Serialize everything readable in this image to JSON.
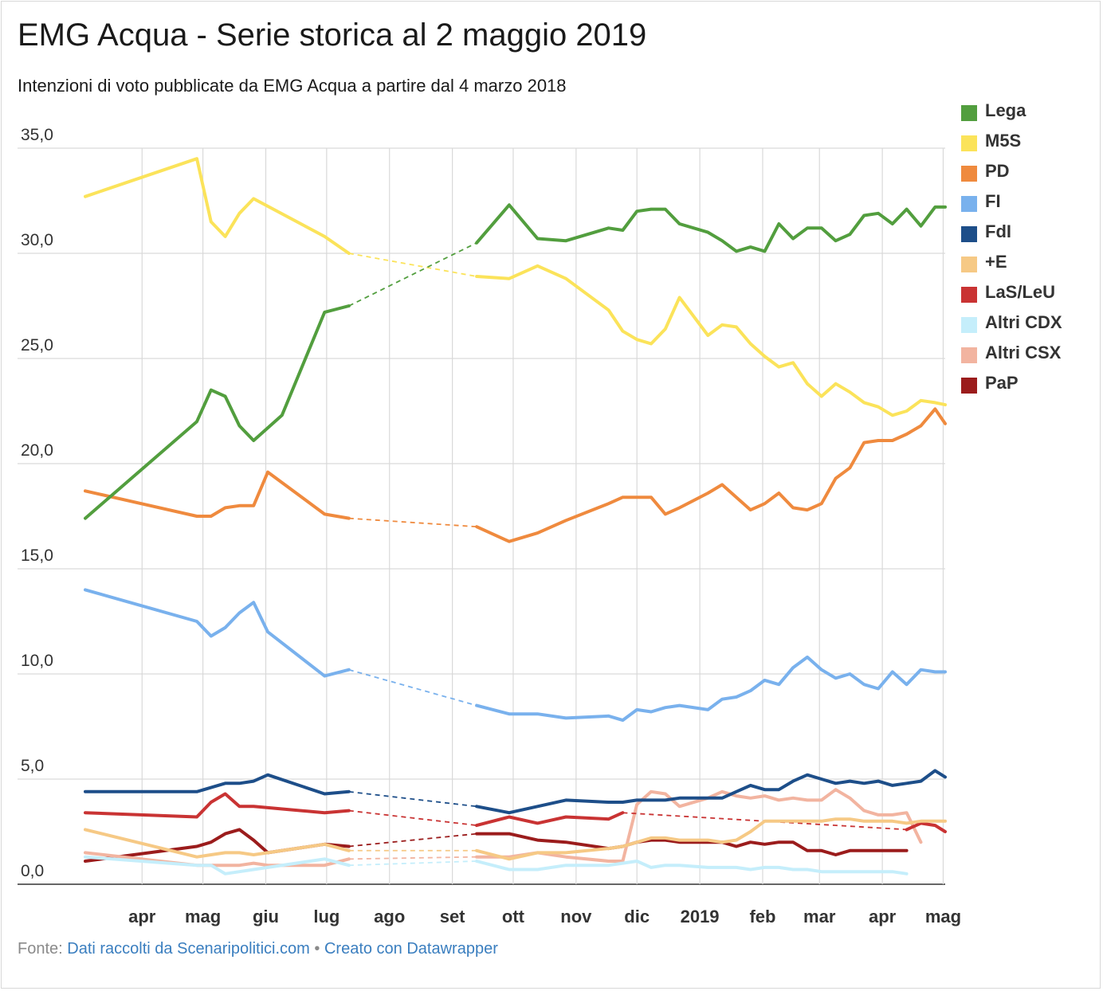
{
  "header": {
    "title": "EMG Acqua - Serie storica al 2 maggio 2019",
    "subtitle": "Intenzioni di voto pubblicate da EMG Acqua a partire dal 4 marzo 2018"
  },
  "footer": {
    "source_prefix": "Fonte:",
    "source_link": "Dati raccolti da Scenaripolitici.com",
    "separator": "•",
    "made_with": "Creato con Datawrapper"
  },
  "chart_data": {
    "type": "line",
    "title": "EMG Acqua - Serie storica al 2 maggio 2019",
    "subtitle": "Intenzioni di voto pubblicate da EMG Acqua a partire dal 4 marzo 2018",
    "xlabel": "",
    "ylabel": "",
    "x_range": [
      "2018-03-04",
      "2019-05-02"
    ],
    "ylim": [
      0,
      35
    ],
    "y_ticks": [
      "0,0",
      "5,0",
      "10,0",
      "15,0",
      "20,0",
      "25,0",
      "30,0",
      "35,0"
    ],
    "x_ticks": [
      {
        "label": "apr",
        "date": "2018-04-01"
      },
      {
        "label": "mag",
        "date": "2018-05-01"
      },
      {
        "label": "giu",
        "date": "2018-06-01"
      },
      {
        "label": "lug",
        "date": "2018-07-01"
      },
      {
        "label": "ago",
        "date": "2018-08-01"
      },
      {
        "label": "set",
        "date": "2018-09-01"
      },
      {
        "label": "ott",
        "date": "2018-10-01"
      },
      {
        "label": "nov",
        "date": "2018-11-01"
      },
      {
        "label": "dic",
        "date": "2018-12-01"
      },
      {
        "label": "2019",
        "date": "2019-01-01"
      },
      {
        "label": "feb",
        "date": "2019-02-01"
      },
      {
        "label": "mar",
        "date": "2019-03-01"
      },
      {
        "label": "apr",
        "date": "2019-04-01"
      },
      {
        "label": "mag",
        "date": "2019-05-01"
      }
    ],
    "grid": true,
    "legend_position": "right",
    "gap": [
      "2018-07-12",
      "2018-09-13"
    ],
    "series": [
      {
        "name": "Lega",
        "color": "#529e3e",
        "width": 4,
        "x": [
          "2018-03-04",
          "2018-04-28",
          "2018-05-05",
          "2018-05-12",
          "2018-05-19",
          "2018-05-26",
          "2018-06-09",
          "2018-06-30",
          "2018-07-12",
          "2018-09-13",
          "2018-09-29",
          "2018-10-13",
          "2018-10-27",
          "2018-11-17",
          "2018-11-24",
          "2018-12-01",
          "2018-12-08",
          "2018-12-15",
          "2018-12-22",
          "2019-01-05",
          "2019-01-12",
          "2019-01-19",
          "2019-01-26",
          "2019-02-02",
          "2019-02-09",
          "2019-02-16",
          "2019-02-23",
          "2019-03-02",
          "2019-03-09",
          "2019-03-16",
          "2019-03-23",
          "2019-03-30",
          "2019-04-06",
          "2019-04-13",
          "2019-04-20",
          "2019-04-27",
          "2019-05-02"
        ],
        "values": [
          17.4,
          22.0,
          23.5,
          23.2,
          21.8,
          21.1,
          22.3,
          27.2,
          27.5,
          30.5,
          32.3,
          30.7,
          30.6,
          31.2,
          31.1,
          32.0,
          32.1,
          32.1,
          31.4,
          31.0,
          30.6,
          30.1,
          30.3,
          30.1,
          31.4,
          30.7,
          31.2,
          31.2,
          30.6,
          30.9,
          31.8,
          31.9,
          31.4,
          32.1,
          31.3,
          32.2,
          32.2
        ]
      },
      {
        "name": "M5S",
        "color": "#fbe35a",
        "width": 4,
        "x": [
          "2018-03-04",
          "2018-04-28",
          "2018-05-05",
          "2018-05-12",
          "2018-05-19",
          "2018-05-26",
          "2018-06-30",
          "2018-07-12",
          "2018-09-13",
          "2018-09-29",
          "2018-10-13",
          "2018-10-27",
          "2018-11-17",
          "2018-11-24",
          "2018-12-01",
          "2018-12-08",
          "2018-12-15",
          "2018-12-22",
          "2019-01-05",
          "2019-01-12",
          "2019-01-19",
          "2019-01-26",
          "2019-02-02",
          "2019-02-09",
          "2019-02-16",
          "2019-02-23",
          "2019-03-02",
          "2019-03-09",
          "2019-03-16",
          "2019-03-23",
          "2019-03-30",
          "2019-04-06",
          "2019-04-13",
          "2019-04-20",
          "2019-04-27",
          "2019-05-02"
        ],
        "values": [
          32.7,
          34.5,
          31.5,
          30.8,
          31.9,
          32.6,
          30.8,
          30.0,
          28.9,
          28.8,
          29.4,
          28.8,
          27.3,
          26.3,
          25.9,
          25.7,
          26.4,
          27.9,
          26.1,
          26.6,
          26.5,
          25.7,
          25.1,
          24.6,
          24.8,
          23.8,
          23.2,
          23.8,
          23.4,
          22.9,
          22.7,
          22.3,
          22.5,
          23.0,
          22.9,
          22.8
        ]
      },
      {
        "name": "PD",
        "color": "#ef8a3e",
        "width": 4,
        "x": [
          "2018-03-04",
          "2018-04-28",
          "2018-05-05",
          "2018-05-12",
          "2018-05-19",
          "2018-05-26",
          "2018-06-02",
          "2018-06-30",
          "2018-07-12",
          "2018-09-13",
          "2018-09-29",
          "2018-10-13",
          "2018-10-27",
          "2018-11-17",
          "2018-11-24",
          "2018-12-01",
          "2018-12-08",
          "2018-12-15",
          "2018-12-22",
          "2019-01-05",
          "2019-01-12",
          "2019-01-19",
          "2019-01-26",
          "2019-02-02",
          "2019-02-09",
          "2019-02-16",
          "2019-02-23",
          "2019-03-02",
          "2019-03-09",
          "2019-03-16",
          "2019-03-23",
          "2019-03-30",
          "2019-04-06",
          "2019-04-13",
          "2019-04-20",
          "2019-04-27",
          "2019-05-02"
        ],
        "values": [
          18.7,
          17.5,
          17.5,
          17.9,
          18.0,
          18.0,
          19.6,
          17.6,
          17.4,
          17.0,
          16.3,
          16.7,
          17.3,
          18.1,
          18.4,
          18.4,
          18.4,
          17.6,
          17.9,
          18.6,
          19.0,
          18.4,
          17.8,
          18.1,
          18.6,
          17.9,
          17.8,
          18.1,
          19.3,
          19.8,
          21.0,
          21.1,
          21.1,
          21.4,
          21.8,
          22.6,
          21.9
        ]
      },
      {
        "name": "FI",
        "color": "#79b1ed",
        "width": 4,
        "x": [
          "2018-03-04",
          "2018-04-28",
          "2018-05-05",
          "2018-05-12",
          "2018-05-19",
          "2018-05-26",
          "2018-06-02",
          "2018-06-30",
          "2018-07-12",
          "2018-09-13",
          "2018-09-29",
          "2018-10-13",
          "2018-10-27",
          "2018-11-17",
          "2018-11-24",
          "2018-12-01",
          "2018-12-08",
          "2018-12-15",
          "2018-12-22",
          "2019-01-05",
          "2019-01-12",
          "2019-01-19",
          "2019-01-26",
          "2019-02-02",
          "2019-02-09",
          "2019-02-16",
          "2019-02-23",
          "2019-03-02",
          "2019-03-09",
          "2019-03-16",
          "2019-03-23",
          "2019-03-30",
          "2019-04-06",
          "2019-04-13",
          "2019-04-20",
          "2019-04-27",
          "2019-05-02"
        ],
        "values": [
          14.0,
          12.5,
          11.8,
          12.2,
          12.9,
          13.4,
          12.0,
          9.9,
          10.2,
          8.5,
          8.1,
          8.1,
          7.9,
          8.0,
          7.8,
          8.3,
          8.2,
          8.4,
          8.5,
          8.3,
          8.8,
          8.9,
          9.2,
          9.7,
          9.5,
          10.3,
          10.8,
          10.2,
          9.8,
          10.0,
          9.5,
          9.3,
          10.1,
          9.5,
          10.2,
          10.1,
          10.1
        ]
      },
      {
        "name": "FdI",
        "color": "#1d4e89",
        "width": 4,
        "x": [
          "2018-03-04",
          "2018-04-28",
          "2018-05-05",
          "2018-05-12",
          "2018-05-19",
          "2018-05-26",
          "2018-06-02",
          "2018-06-30",
          "2018-07-12",
          "2018-09-13",
          "2018-09-29",
          "2018-10-13",
          "2018-10-27",
          "2018-11-17",
          "2018-11-24",
          "2018-12-01",
          "2018-12-08",
          "2018-12-15",
          "2018-12-22",
          "2019-01-05",
          "2019-01-12",
          "2019-01-19",
          "2019-01-26",
          "2019-02-02",
          "2019-02-09",
          "2019-02-16",
          "2019-02-23",
          "2019-03-02",
          "2019-03-09",
          "2019-03-16",
          "2019-03-23",
          "2019-03-30",
          "2019-04-06",
          "2019-04-13",
          "2019-04-20",
          "2019-04-27",
          "2019-05-02"
        ],
        "values": [
          4.4,
          4.4,
          4.6,
          4.8,
          4.8,
          4.9,
          5.2,
          4.3,
          4.4,
          3.7,
          3.4,
          3.7,
          4.0,
          3.9,
          3.9,
          4.0,
          4.0,
          4.0,
          4.1,
          4.1,
          4.1,
          4.4,
          4.7,
          4.5,
          4.5,
          4.9,
          5.2,
          5.0,
          4.8,
          4.9,
          4.8,
          4.9,
          4.7,
          4.8,
          4.9,
          5.4,
          5.1
        ]
      },
      {
        "name": "+E",
        "color": "#f6c985",
        "width": 4,
        "x": [
          "2018-03-04",
          "2018-04-28",
          "2018-05-05",
          "2018-05-12",
          "2018-05-19",
          "2018-05-26",
          "2018-06-02",
          "2018-06-30",
          "2018-07-12",
          "2018-09-13",
          "2018-09-29",
          "2018-10-13",
          "2018-10-27",
          "2018-11-17",
          "2018-11-24",
          "2018-12-01",
          "2018-12-08",
          "2018-12-15",
          "2018-12-22",
          "2019-01-05",
          "2019-01-12",
          "2019-01-19",
          "2019-01-26",
          "2019-02-02",
          "2019-02-09",
          "2019-02-16",
          "2019-02-23",
          "2019-03-02",
          "2019-03-09",
          "2019-03-16",
          "2019-03-23",
          "2019-03-30",
          "2019-04-06",
          "2019-04-13",
          "2019-04-20",
          "2019-04-27",
          "2019-05-02"
        ],
        "values": [
          2.6,
          1.3,
          1.4,
          1.5,
          1.5,
          1.4,
          1.5,
          1.9,
          1.6,
          1.6,
          1.2,
          1.5,
          1.5,
          1.7,
          1.8,
          2.0,
          2.2,
          2.2,
          2.1,
          2.1,
          2.0,
          2.1,
          2.5,
          3.0,
          3.0,
          3.0,
          3.0,
          3.0,
          3.1,
          3.1,
          3.0,
          3.0,
          3.0,
          2.9,
          3.0,
          3.0,
          3.0
        ]
      },
      {
        "name": "LaS/LeU",
        "color": "#c93333",
        "width": 4,
        "x": [
          "2018-03-04",
          "2018-04-28",
          "2018-05-05",
          "2018-05-12",
          "2018-05-19",
          "2018-05-26",
          "2018-06-30",
          "2018-07-12",
          "2018-09-13",
          "2018-09-29",
          "2018-10-13",
          "2018-10-27",
          "2018-11-17",
          "2018-11-24",
          "2019-04-13",
          "2019-04-20",
          "2019-04-27",
          "2019-05-02"
        ],
        "values": [
          3.4,
          3.2,
          3.9,
          4.3,
          3.7,
          3.7,
          3.4,
          3.5,
          2.8,
          3.2,
          2.9,
          3.2,
          3.1,
          3.4,
          2.6,
          2.9,
          2.8,
          2.5
        ],
        "gap2": [
          "2018-11-24",
          "2019-04-13"
        ]
      },
      {
        "name": "Altri CDX",
        "color": "#c5eefb",
        "width": 4,
        "x": [
          "2018-03-04",
          "2018-04-28",
          "2018-05-05",
          "2018-05-12",
          "2018-05-19",
          "2018-05-26",
          "2018-06-30",
          "2018-07-12",
          "2018-09-13",
          "2018-09-29",
          "2018-10-13",
          "2018-10-27",
          "2018-11-17",
          "2018-11-24",
          "2018-12-01",
          "2018-12-08",
          "2018-12-15",
          "2018-12-22",
          "2019-01-05",
          "2019-01-12",
          "2019-01-19",
          "2019-01-26",
          "2019-02-02",
          "2019-02-09",
          "2019-02-16",
          "2019-02-23",
          "2019-03-02",
          "2019-03-09",
          "2019-03-16",
          "2019-03-23",
          "2019-03-30",
          "2019-04-06",
          "2019-04-13"
        ],
        "values": [
          1.3,
          0.9,
          0.9,
          0.5,
          0.6,
          0.7,
          1.2,
          0.9,
          1.1,
          0.7,
          0.7,
          0.9,
          0.9,
          1.0,
          1.1,
          0.8,
          0.9,
          0.9,
          0.8,
          0.8,
          0.8,
          0.7,
          0.8,
          0.8,
          0.7,
          0.7,
          0.6,
          0.6,
          0.6,
          0.6,
          0.6,
          0.6,
          0.5
        ]
      },
      {
        "name": "Altri CSX",
        "color": "#f2b4a0",
        "width": 4,
        "x": [
          "2018-03-04",
          "2018-04-28",
          "2018-05-05",
          "2018-05-12",
          "2018-05-19",
          "2018-05-26",
          "2018-06-02",
          "2018-06-30",
          "2018-07-12",
          "2018-09-13",
          "2018-09-29",
          "2018-10-13",
          "2018-10-27",
          "2018-11-17",
          "2018-11-24",
          "2018-12-01",
          "2018-12-08",
          "2018-12-15",
          "2018-12-22",
          "2019-01-05",
          "2019-01-12",
          "2019-01-19",
          "2019-01-26",
          "2019-02-02",
          "2019-02-09",
          "2019-02-16",
          "2019-02-23",
          "2019-03-02",
          "2019-03-09",
          "2019-03-16",
          "2019-03-23",
          "2019-03-30",
          "2019-04-06",
          "2019-04-13",
          "2019-04-20"
        ],
        "values": [
          1.5,
          0.9,
          0.9,
          0.9,
          0.9,
          1.0,
          0.9,
          0.9,
          1.2,
          1.3,
          1.3,
          1.5,
          1.3,
          1.1,
          1.1,
          3.8,
          4.4,
          4.3,
          3.7,
          4.1,
          4.4,
          4.2,
          4.1,
          4.2,
          4.0,
          4.1,
          4.0,
          4.0,
          4.5,
          4.1,
          3.5,
          3.3,
          3.3,
          3.4,
          2.0
        ]
      },
      {
        "name": "PaP",
        "color": "#9b1c1c",
        "width": 4,
        "x": [
          "2018-03-04",
          "2018-04-28",
          "2018-05-05",
          "2018-05-12",
          "2018-05-19",
          "2018-05-26",
          "2018-06-02",
          "2018-06-30",
          "2018-07-12",
          "2018-09-13",
          "2018-09-29",
          "2018-10-13",
          "2018-10-27",
          "2018-11-17",
          "2018-11-24",
          "2018-12-01",
          "2018-12-08",
          "2018-12-15",
          "2018-12-22",
          "2019-01-05",
          "2019-01-12",
          "2019-01-19",
          "2019-01-26",
          "2019-02-02",
          "2019-02-09",
          "2019-02-16",
          "2019-02-23",
          "2019-03-02",
          "2019-03-09",
          "2019-03-16",
          "2019-03-23",
          "2019-03-30",
          "2019-04-06",
          "2019-04-13"
        ],
        "values": [
          1.1,
          1.8,
          2.0,
          2.4,
          2.6,
          2.1,
          1.5,
          1.9,
          1.8,
          2.4,
          2.4,
          2.1,
          2.0,
          1.7,
          1.8,
          2.0,
          2.1,
          2.1,
          2.0,
          2.0,
          2.0,
          1.8,
          2.0,
          1.9,
          2.0,
          2.0,
          1.6,
          1.6,
          1.4,
          1.6,
          1.6,
          1.6,
          1.6,
          1.6
        ]
      }
    ]
  }
}
